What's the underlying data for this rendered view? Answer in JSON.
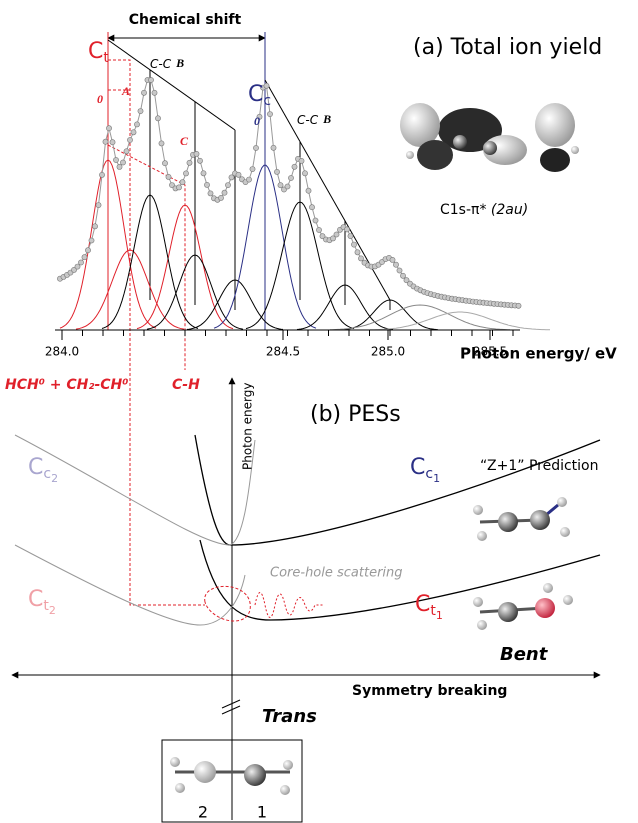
{
  "panel_a": {
    "title": "(a) Total ion yield",
    "shift_label": "Chemical shift",
    "ct": {
      "base": "C",
      "sub": "t"
    },
    "cc": {
      "base": "C",
      "sub": "c"
    },
    "vib_label": "C-C",
    "vib_mode": "B",
    "origin": "0",
    "label_a": "A",
    "label_c": "C",
    "orbital": "C1s-π*",
    "orbital_symmetry": "(2au)",
    "xticks": [
      "284.0",
      "284.5",
      "285.0",
      "285.5"
    ],
    "xlabel": "Photon energy/ eV",
    "fragment_label": "HCH⁰ + CH₂-CH⁰",
    "ch_label": "C-H"
  },
  "panel_b": {
    "title": "(b) PESs",
    "ylabel": "Photon energy",
    "prediction": "“Z+1” Prediction",
    "cc2": {
      "base": "C",
      "sub": "c",
      "sub2": "2"
    },
    "cc1": {
      "base": "C",
      "sub": "c",
      "sub2": "1"
    },
    "ct2": {
      "base": "C",
      "sub": "t",
      "sub2": "2"
    },
    "ct1": {
      "base": "C",
      "sub": "t",
      "sub2": "1"
    },
    "scattering": "Core-hole scattering",
    "bent": "Bent",
    "xlabel": "Symmetry breaking",
    "trans": "Trans",
    "site_2": "2",
    "site_1": "1"
  }
}
